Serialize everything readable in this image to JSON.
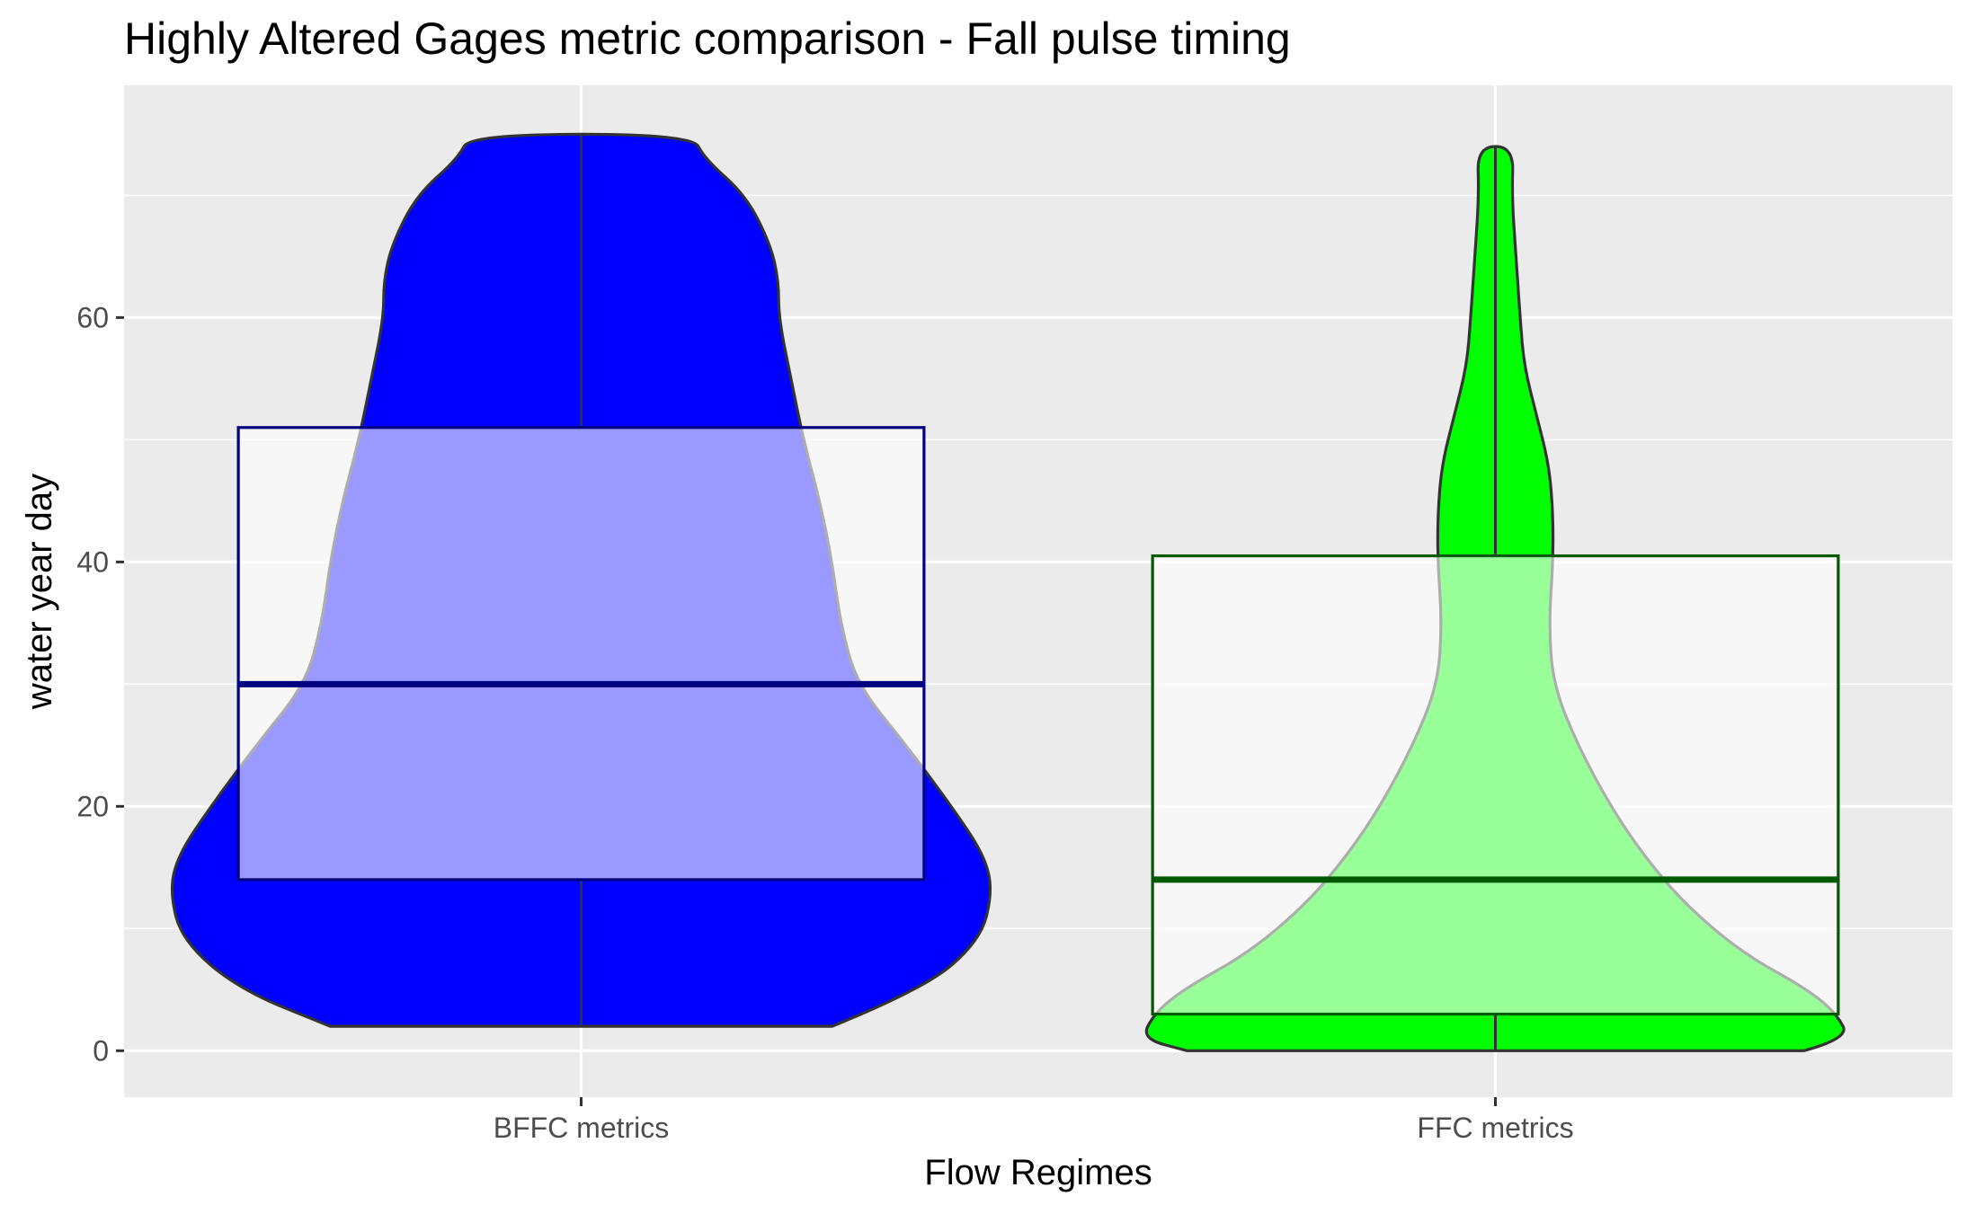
{
  "chart_data": {
    "type": "violin",
    "title": "Highly Altered Gages metric comparison - Fall pulse timing",
    "xlabel": "Flow Regimes",
    "ylabel": "water year day",
    "ylim": [
      -3.8,
      79
    ],
    "yticks": [
      0,
      20,
      40,
      60
    ],
    "grid": true,
    "legend": "none",
    "categories": [
      "BFFC metrics",
      "FFC metrics"
    ],
    "groups": [
      {
        "category": "BFFC metrics",
        "fill": "#0000ff",
        "box_color": "#000080",
        "box": {
          "min": 2,
          "q1": 14,
          "median": 30,
          "q3": 51,
          "max": 75
        },
        "density": [
          [
            2,
            0.61
          ],
          [
            5,
            0.83
          ],
          [
            9,
            0.97
          ],
          [
            13,
            1.0
          ],
          [
            16,
            0.98
          ],
          [
            20,
            0.9
          ],
          [
            25,
            0.79
          ],
          [
            30,
            0.67
          ],
          [
            35,
            0.63
          ],
          [
            40,
            0.61
          ],
          [
            45,
            0.58
          ],
          [
            50,
            0.54
          ],
          [
            55,
            0.51
          ],
          [
            60,
            0.48
          ],
          [
            63,
            0.48
          ],
          [
            66,
            0.46
          ],
          [
            70,
            0.4
          ],
          [
            73,
            0.3
          ],
          [
            75,
            0.27
          ]
        ]
      },
      {
        "category": "FFC metrics",
        "fill": "#00ff00",
        "box_color": "#005a00",
        "box": {
          "min": 0,
          "q1": 3,
          "median": 14,
          "q3": 40.5,
          "max": 74
        },
        "density": [
          [
            0,
            0.75
          ],
          [
            1,
            0.86
          ],
          [
            3,
            0.83
          ],
          [
            5,
            0.76
          ],
          [
            8,
            0.6
          ],
          [
            12,
            0.46
          ],
          [
            16,
            0.36
          ],
          [
            20,
            0.28
          ],
          [
            25,
            0.2
          ],
          [
            30,
            0.14
          ],
          [
            35,
            0.13
          ],
          [
            40,
            0.14
          ],
          [
            44,
            0.14
          ],
          [
            48,
            0.13
          ],
          [
            52,
            0.1
          ],
          [
            56,
            0.07
          ],
          [
            60,
            0.06
          ],
          [
            65,
            0.05
          ],
          [
            70,
            0.04
          ],
          [
            74,
            0.044
          ]
        ]
      }
    ]
  }
}
